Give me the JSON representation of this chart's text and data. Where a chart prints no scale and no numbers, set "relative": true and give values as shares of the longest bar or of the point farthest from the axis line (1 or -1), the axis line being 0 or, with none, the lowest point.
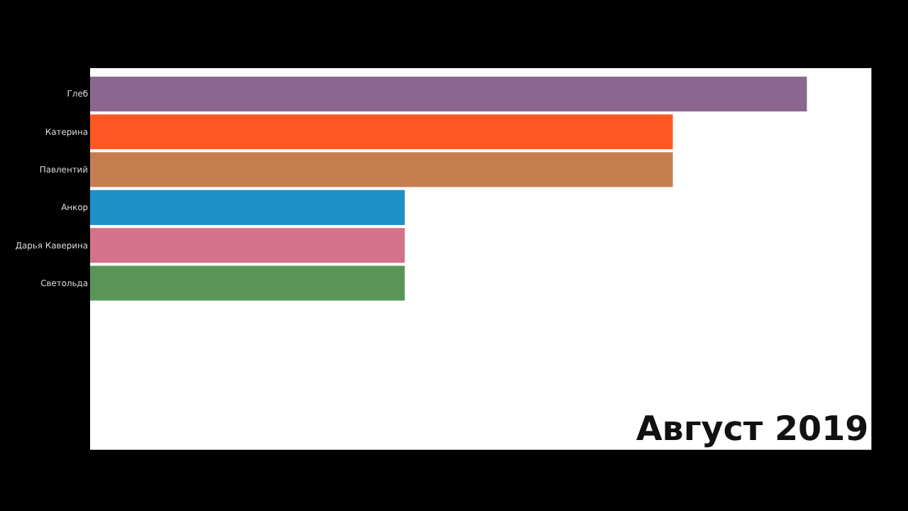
{
  "chart_data": {
    "type": "bar",
    "orientation": "horizontal",
    "relative": true,
    "categories": [
      "Глеб",
      "Катерина",
      "Павлентий",
      "Анкор",
      "Дарья Каверина",
      "Светольда"
    ],
    "values": [
      1,
      0.813,
      0.813,
      0.439,
      0.439,
      0.439
    ],
    "colors": [
      "#8b6690",
      "#ff5722",
      "#c67e50",
      "#1e90c8",
      "#d4728c",
      "#5a9558"
    ],
    "annotations": [
      "Август 2019"
    ]
  }
}
